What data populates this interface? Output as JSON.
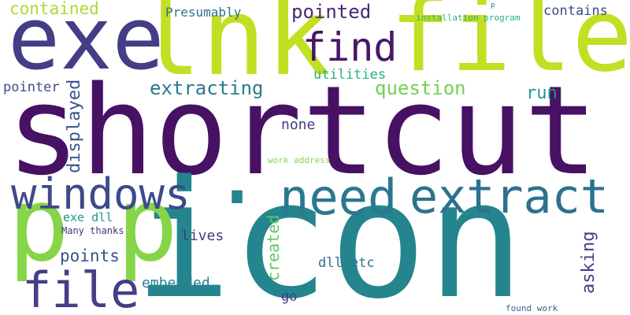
{
  "words": [
    {
      "id": "shortcut",
      "text": "shortcut",
      "color": "#471164",
      "orientation": "horizontal"
    },
    {
      "id": "icon",
      "text": "icon",
      "color": "#25858e",
      "orientation": "horizontal"
    },
    {
      "id": "lnk",
      "text": "lnk",
      "color": "#c2df23",
      "orientation": "horizontal"
    },
    {
      "id": "file-big",
      "text": "file",
      "color": "#c2df23",
      "orientation": "horizontal"
    },
    {
      "id": "exe",
      "text": "exe",
      "color": "#433e85",
      "orientation": "horizontal"
    },
    {
      "id": "p-green",
      "text": "p",
      "color": "#86d549",
      "orientation": "horizontal"
    },
    {
      "id": "p-green-2",
      "text": "p",
      "color": "#86d549",
      "orientation": "horizontal"
    },
    {
      "id": "dot",
      "text": ".",
      "color": "#25858e",
      "orientation": "horizontal"
    },
    {
      "id": "windows",
      "text": "windows",
      "color": "#3e4a89",
      "orientation": "horizontal"
    },
    {
      "id": "need",
      "text": "need",
      "color": "#2a788e",
      "orientation": "horizontal"
    },
    {
      "id": "extract",
      "text": "extract",
      "color": "#2c728e",
      "orientation": "horizontal"
    },
    {
      "id": "file-bottom",
      "text": "file",
      "color": "#433e85",
      "orientation": "horizontal"
    },
    {
      "id": "find",
      "text": "find",
      "color": "#481668",
      "orientation": "horizontal"
    },
    {
      "id": "contained",
      "text": "contained",
      "color": "#a8db34",
      "orientation": "horizontal"
    },
    {
      "id": "presumably",
      "text": "Presumably",
      "color": "#2c728e",
      "orientation": "horizontal"
    },
    {
      "id": "pointed",
      "text": "pointed",
      "color": "#482878",
      "orientation": "horizontal"
    },
    {
      "id": "contains",
      "text": "contains",
      "color": "#3e4a89",
      "orientation": "horizontal"
    },
    {
      "id": "installation-program",
      "text": "installation program",
      "color": "#29af7f",
      "orientation": "horizontal"
    },
    {
      "id": "p-small",
      "text": "p",
      "color": "#2c728e",
      "orientation": "horizontal"
    },
    {
      "id": "utilities",
      "text": "utilities",
      "color": "#29af7f",
      "orientation": "horizontal"
    },
    {
      "id": "pointer",
      "text": "pointer",
      "color": "#3e4a89",
      "orientation": "horizontal"
    },
    {
      "id": "extracting",
      "text": "extracting",
      "color": "#2a788e",
      "orientation": "horizontal"
    },
    {
      "id": "question",
      "text": "question",
      "color": "#75d054",
      "orientation": "horizontal"
    },
    {
      "id": "run",
      "text": "run",
      "color": "#1f988b",
      "orientation": "horizontal"
    },
    {
      "id": "displayed",
      "text": "displayed",
      "color": "#3b528b",
      "orientation": "vertical"
    },
    {
      "id": "none",
      "text": "none",
      "color": "#433e85",
      "orientation": "horizontal"
    },
    {
      "id": "work-address",
      "text": "work address",
      "color": "#86d549",
      "orientation": "horizontal"
    },
    {
      "id": "exe-dll",
      "text": "exe dll",
      "color": "#1f988b",
      "orientation": "horizontal"
    },
    {
      "id": "many-thanks",
      "text": "Many thanks",
      "color": "#46337e",
      "orientation": "horizontal"
    },
    {
      "id": "lives",
      "text": "lives",
      "color": "#453781",
      "orientation": "horizontal"
    },
    {
      "id": "created",
      "text": "created",
      "color": "#5ec962",
      "orientation": "vertical"
    },
    {
      "id": "asking",
      "text": "asking",
      "color": "#433e85",
      "orientation": "vertical"
    },
    {
      "id": "points",
      "text": "points",
      "color": "#3b528b",
      "orientation": "horizontal"
    },
    {
      "id": "dll-etc",
      "text": "dll etc",
      "color": "#2c728e",
      "orientation": "horizontal"
    },
    {
      "id": "embedded",
      "text": "embedded",
      "color": "#26828e",
      "orientation": "horizontal"
    },
    {
      "id": "go",
      "text": "go",
      "color": "#433e85",
      "orientation": "horizontal"
    },
    {
      "id": "found-work",
      "text": "found work",
      "color": "#31688e",
      "orientation": "horizontal"
    }
  ]
}
